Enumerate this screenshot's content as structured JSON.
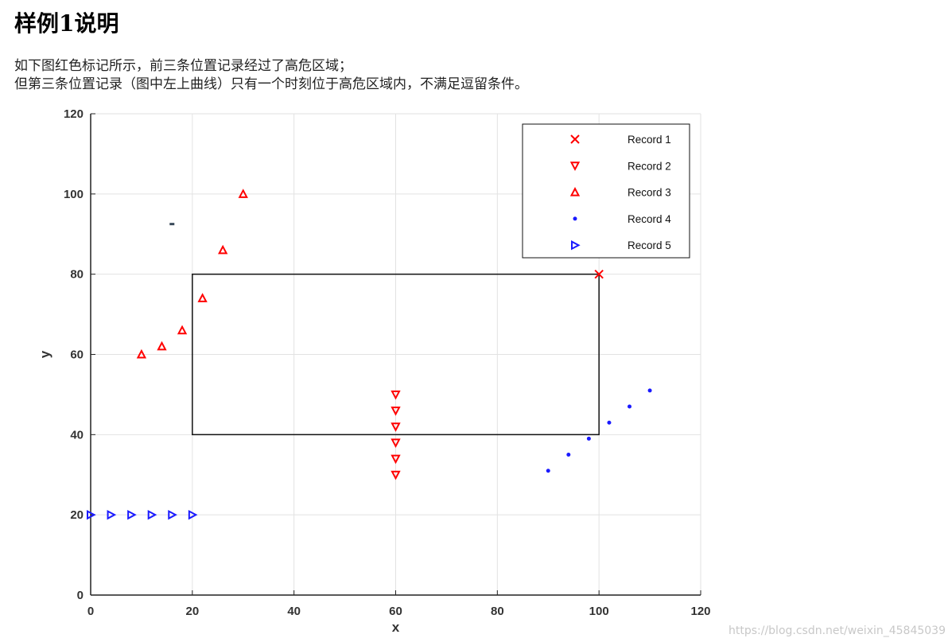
{
  "page": {
    "title": "样例1说明",
    "description": [
      "如下图红色标记所示，前三条位置记录经过了高危区域；",
      "但第三条位置记录（图中左上曲线）只有一个时刻位于高危区域内，不满足逗留条件。"
    ],
    "watermark": "https://blog.csdn.net/weixin_45845039"
  },
  "chart_data": {
    "type": "scatter",
    "title": "",
    "xlabel": "x",
    "ylabel": "y",
    "xlim": [
      0,
      120
    ],
    "ylim": [
      0,
      120
    ],
    "xticks": [
      0,
      20,
      40,
      60,
      80,
      100,
      120
    ],
    "yticks": [
      0,
      20,
      40,
      60,
      80,
      100,
      120
    ],
    "grid": true,
    "legend_position": "top-right",
    "region": {
      "x": [
        20,
        100
      ],
      "y": [
        40,
        80
      ]
    },
    "series": [
      {
        "name": "Record 1",
        "marker": "x",
        "color": "#ff0000",
        "points": [
          [
            100,
            80
          ]
        ]
      },
      {
        "name": "Record 2",
        "marker": "triangle-down",
        "color": "#ff0000",
        "points": [
          [
            60,
            30
          ],
          [
            60,
            34
          ],
          [
            60,
            38
          ],
          [
            60,
            42
          ],
          [
            60,
            46
          ],
          [
            60,
            50
          ]
        ]
      },
      {
        "name": "Record 3",
        "marker": "triangle-up",
        "color": "#ff0000",
        "points": [
          [
            10,
            60
          ],
          [
            14,
            62
          ],
          [
            18,
            66
          ],
          [
            22,
            74
          ],
          [
            26,
            86
          ],
          [
            30,
            100
          ]
        ]
      },
      {
        "name": "Record 4",
        "marker": "dot",
        "color": "#1a1aff",
        "points": [
          [
            90,
            31
          ],
          [
            94,
            35
          ],
          [
            98,
            39
          ],
          [
            102,
            43
          ],
          [
            106,
            47
          ],
          [
            110,
            51
          ]
        ]
      },
      {
        "name": "Record 5",
        "marker": "triangle-right",
        "color": "#1a1aff",
        "points": [
          [
            0,
            20
          ],
          [
            4,
            20
          ],
          [
            8,
            20
          ],
          [
            12,
            20
          ],
          [
            16,
            20
          ],
          [
            20,
            20
          ]
        ]
      }
    ],
    "extra_marks": [
      {
        "marker": "dash",
        "color": "#3a4a5a",
        "points": [
          [
            16,
            92.5
          ]
        ]
      }
    ]
  }
}
